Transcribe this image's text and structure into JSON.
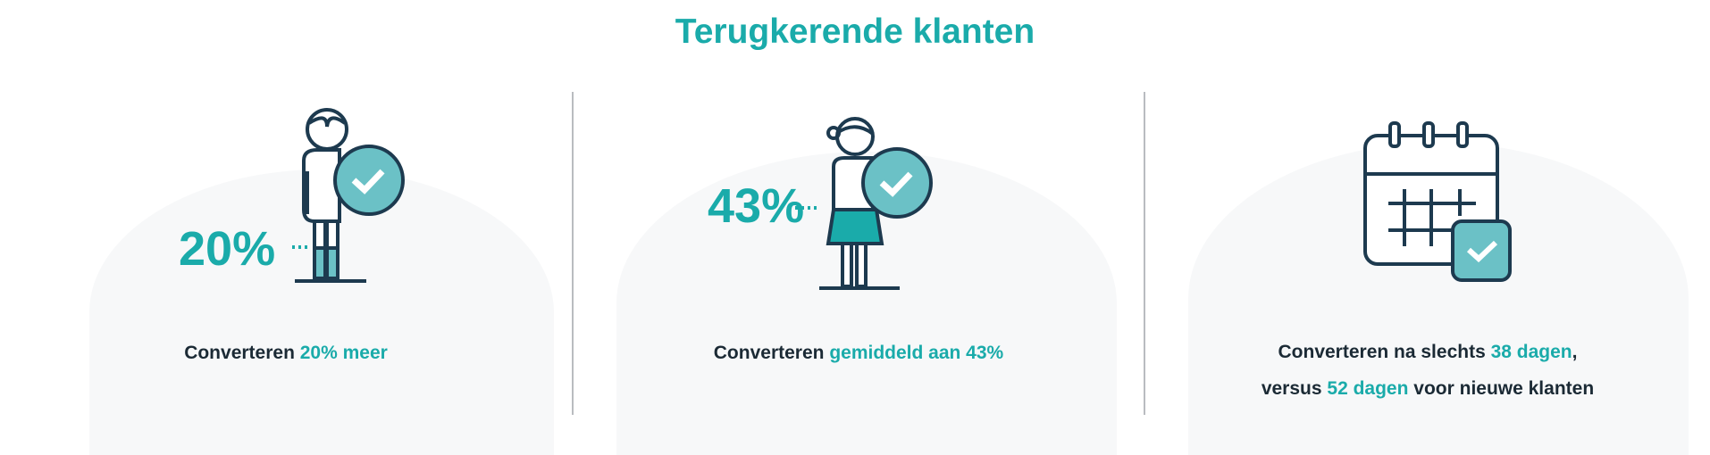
{
  "title": "Terugkerende klanten",
  "colors": {
    "accent": "#1aabaa",
    "icon_fill": "#6bc1c6",
    "outline": "#1d3a4f"
  },
  "panels": [
    {
      "icon": "male-person-check-icon",
      "percent": "20%",
      "caption": {
        "pre": "Converteren ",
        "highlight": "20% meer"
      }
    },
    {
      "icon": "female-person-check-icon",
      "percent": "43%",
      "caption": {
        "pre": "Converteren ",
        "highlight": "gemiddeld aan 43%"
      }
    },
    {
      "icon": "calendar-check-icon",
      "caption": {
        "line1_pre": "Converteren na slechts ",
        "line1_highlight": "38 dagen",
        "line1_post": ",",
        "line2_pre": "versus ",
        "line2_highlight": "52 dagen",
        "line2_post": " voor nieuwe klanten"
      }
    }
  ]
}
